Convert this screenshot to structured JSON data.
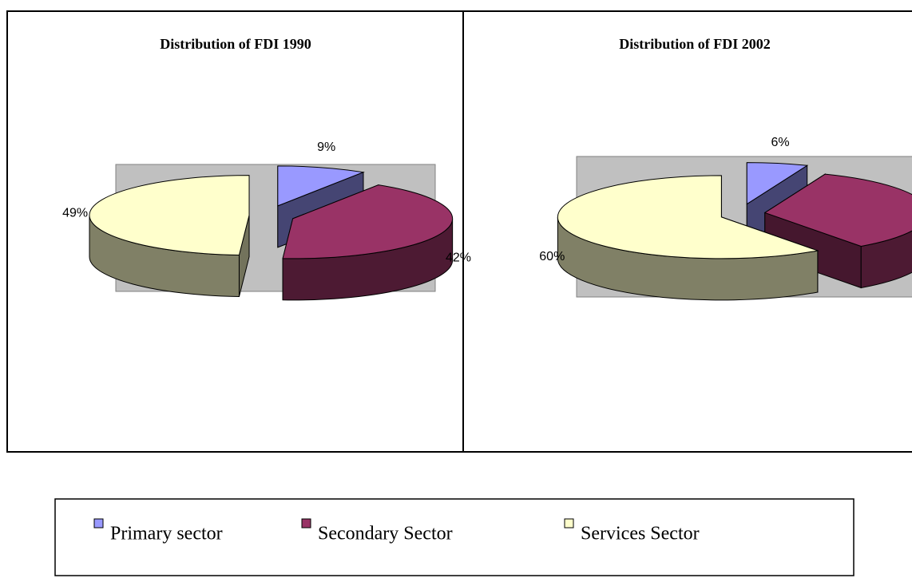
{
  "chart_data": [
    {
      "type": "pie",
      "title": "Distribution of FDI 1990",
      "categories": [
        "Primary sector",
        "Secondary Sector",
        "Services Sector"
      ],
      "values": [
        9,
        42,
        49
      ],
      "value_labels": [
        "9%",
        "42%",
        "49%"
      ],
      "colors": [
        "#9999ff",
        "#993366",
        "#ffffcc"
      ]
    },
    {
      "type": "pie",
      "title": "Distribution of FDI 2002",
      "categories": [
        "Primary sector",
        "Secondary Sector",
        "Services Sector"
      ],
      "values": [
        6,
        34,
        60
      ],
      "value_labels": [
        "6%",
        null,
        "60%"
      ],
      "colors": [
        "#9999ff",
        "#993366",
        "#ffffcc"
      ]
    }
  ]
}
